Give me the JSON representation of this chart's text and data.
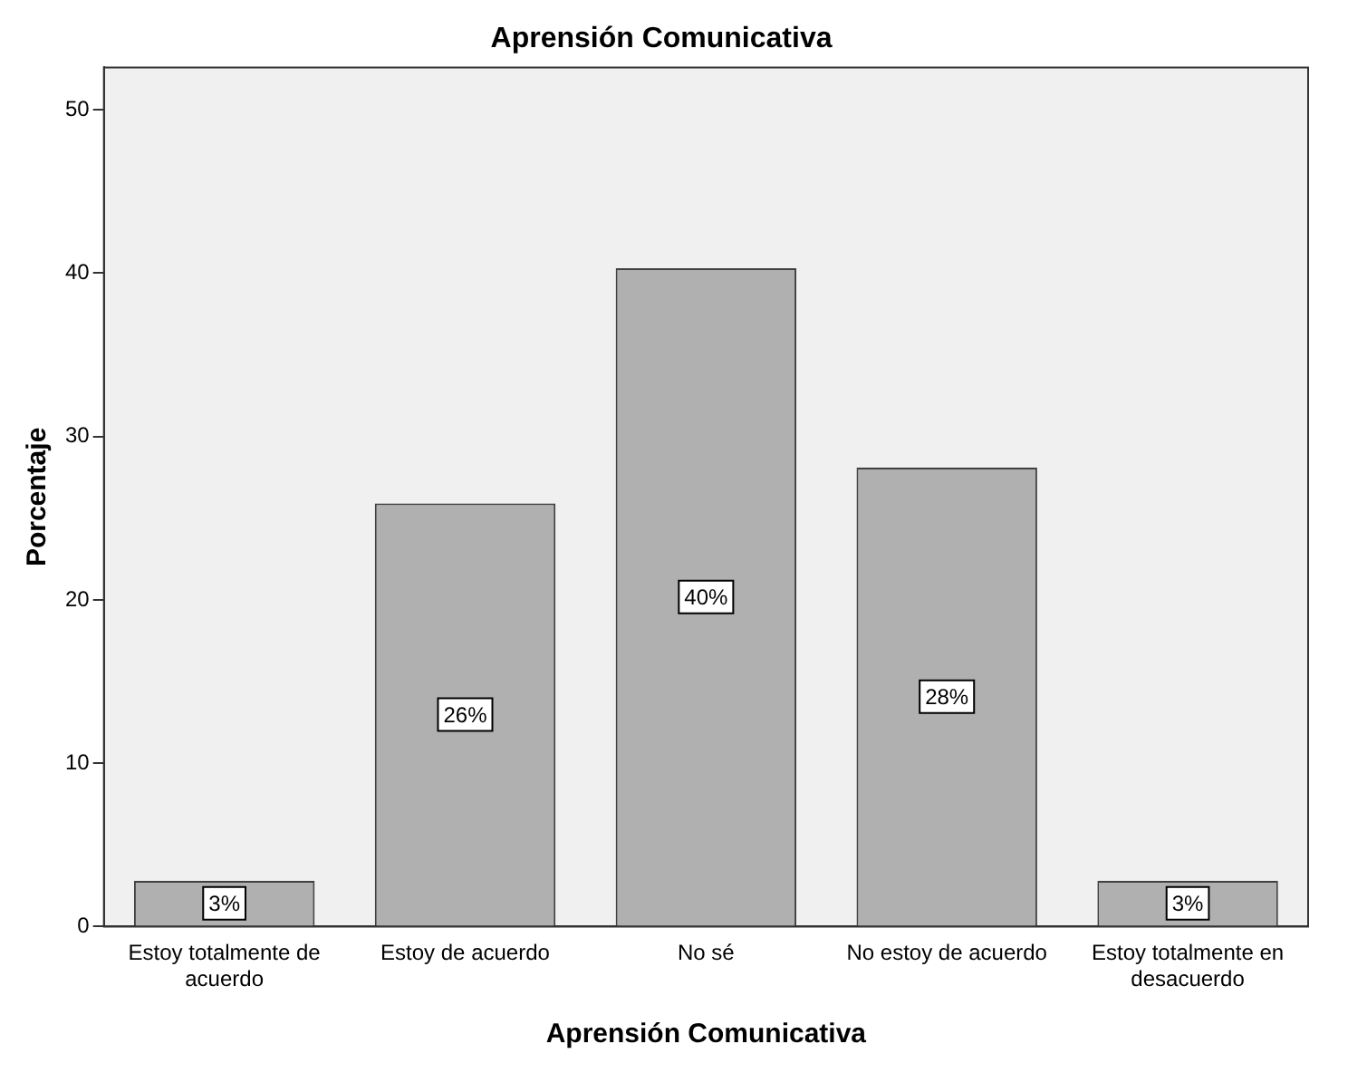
{
  "chart_data": {
    "type": "bar",
    "title": "Aprensión Comunicativa",
    "xlabel": "Aprensión Comunicativa",
    "ylabel": "Porcentaje",
    "categories": [
      "Estoy totalmente de acuerdo",
      "Estoy de acuerdo",
      "No sé",
      "No estoy de acuerdo",
      "Estoy totalmente en desacuerdo"
    ],
    "values": [
      2.8,
      25.9,
      40.3,
      28.1,
      2.8
    ],
    "value_labels": [
      "3%",
      "26%",
      "40%",
      "28%",
      "3%"
    ],
    "color": "#b0b0b0",
    "ylim": [
      0,
      52.6
    ],
    "yticks": [
      0,
      10,
      20,
      30,
      40,
      50
    ],
    "grid": false,
    "legend": false
  }
}
